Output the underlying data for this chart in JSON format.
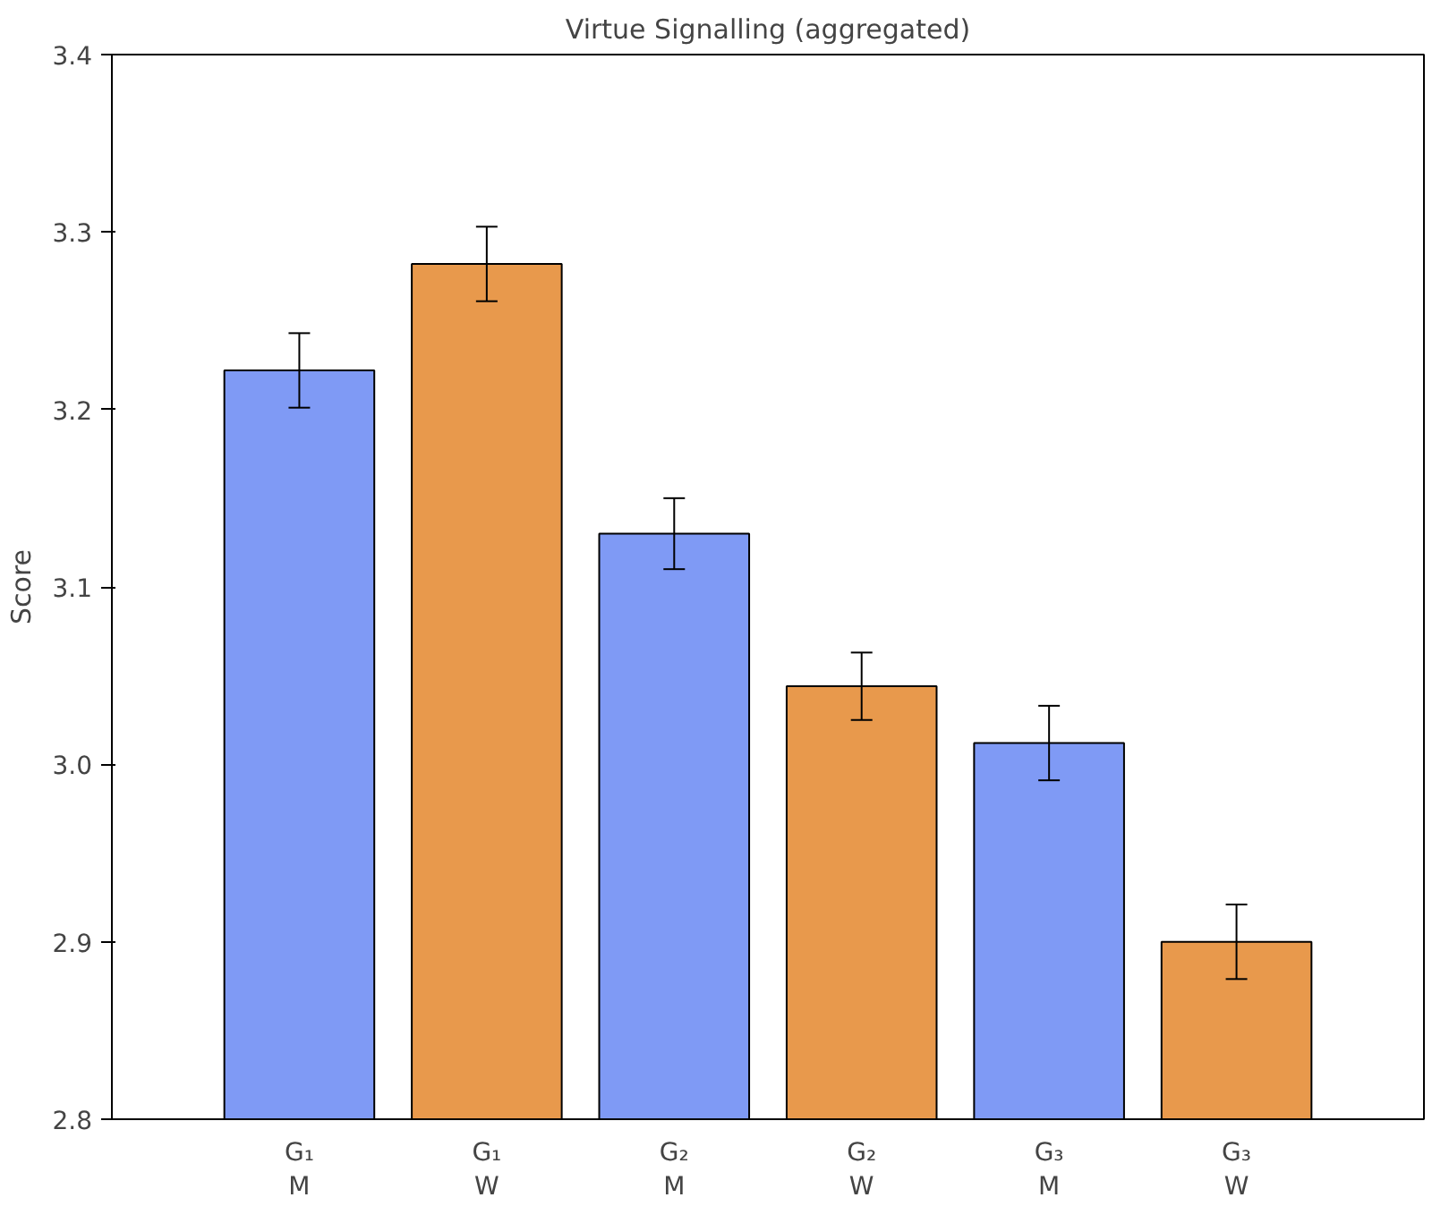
{
  "chart_data": {
    "type": "bar",
    "title": "Virtue Signalling (aggregated)",
    "ylabel": "Score",
    "categories": [
      "G₁\nM",
      "G₁\nW",
      "G₂\nM",
      "G₂\nW",
      "G₃\nM",
      "G₃\nW"
    ],
    "values": [
      3.222,
      3.282,
      3.13,
      3.044,
      3.012,
      2.9
    ],
    "errors": [
      0.021,
      0.021,
      0.02,
      0.019,
      0.021,
      0.021
    ],
    "colors": [
      "#7f9af5",
      "#e8994c",
      "#7f9af5",
      "#e8994c",
      "#7f9af5",
      "#e8994c"
    ],
    "ylim": [
      2.8,
      3.4
    ],
    "yticks": [
      {
        "value": 2.8,
        "label": "2.8"
      },
      {
        "value": 2.9,
        "label": "2.9"
      },
      {
        "value": 3.0,
        "label": "3.0"
      },
      {
        "value": 3.1,
        "label": "3.1"
      },
      {
        "value": 3.2,
        "label": "3.2"
      },
      {
        "value": 3.3,
        "label": "3.3"
      },
      {
        "value": 3.4,
        "label": "3.4"
      }
    ],
    "grid": false
  }
}
